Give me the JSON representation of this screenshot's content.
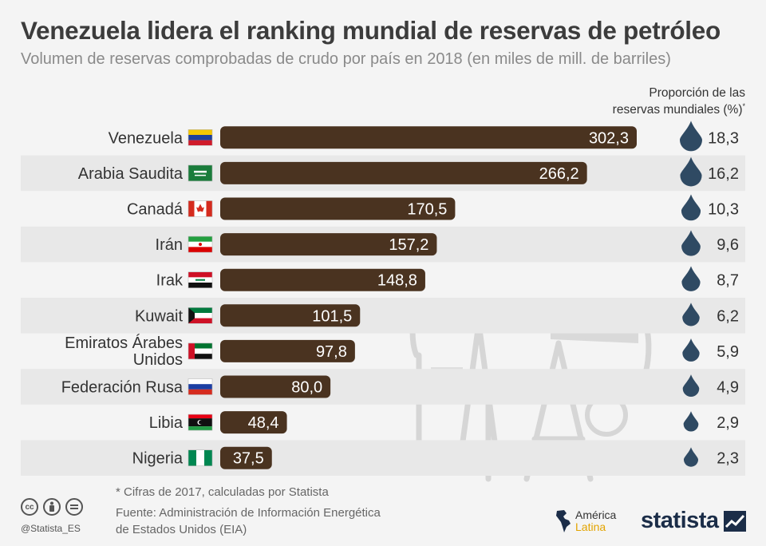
{
  "header": {
    "title": "Venezuela lidera el ranking mundial de reservas de petróleo",
    "subtitle": "Volumen de reservas comprobadas de crudo por país en 2018 (en miles de mill. de barriles)"
  },
  "proportion_header": {
    "line1": "Proporción de las",
    "line2": "reservas mundiales (%)",
    "mark": "*"
  },
  "chart_data": {
    "type": "bar",
    "orientation": "horizontal",
    "title": "Venezuela lidera el ranking mundial de reservas de petróleo",
    "subtitle": "Volumen de reservas comprobadas de crudo por país en 2018 (en miles de mill. de barriles)",
    "categories": [
      "Venezuela",
      "Arabia Saudita",
      "Canadá",
      "Irán",
      "Irak",
      "Kuwait",
      "Emiratos Árabes Unidos",
      "Federación Rusa",
      "Libia",
      "Nigeria"
    ],
    "values": [
      302.3,
      266.2,
      170.5,
      157.2,
      148.8,
      101.5,
      97.8,
      80.0,
      48.4,
      37.5
    ],
    "value_labels": [
      "302,3",
      "266,2",
      "170,5",
      "157,2",
      "148,8",
      "101,5",
      "97,8",
      "80,0",
      "48,4",
      "37,5"
    ],
    "share_percent": [
      18.3,
      16.2,
      10.3,
      9.6,
      8.7,
      6.2,
      5.9,
      4.9,
      2.9,
      2.3
    ],
    "share_labels": [
      "18,3",
      "16,2",
      "10,3",
      "9,6",
      "8,7",
      "6,2",
      "5,9",
      "4,9",
      "2,9",
      "2,3"
    ],
    "flags": [
      "flag-venezuela",
      "flag-saudi-arabia",
      "flag-canada",
      "flag-iran",
      "flag-iraq",
      "flag-kuwait",
      "flag-uae",
      "flag-russia",
      "flag-libya",
      "flag-nigeria"
    ],
    "xlim": [
      0,
      302.3
    ],
    "grid": false,
    "bar_color": "#4a3320",
    "drop_color": "#2f4a63"
  },
  "footer": {
    "footnote": "* Cifras de 2017, calculadas por Statista",
    "source_line1": "Fuente: Administración de Información Energética",
    "source_line2": "de Estados Unidos (EIA)",
    "handle": "@Statista_ES",
    "brand1_line1": "América",
    "brand1_line2": "Latina",
    "brand2": "statista",
    "icons": [
      "cc-icon",
      "attribution-icon",
      "no-derivatives-icon"
    ]
  }
}
